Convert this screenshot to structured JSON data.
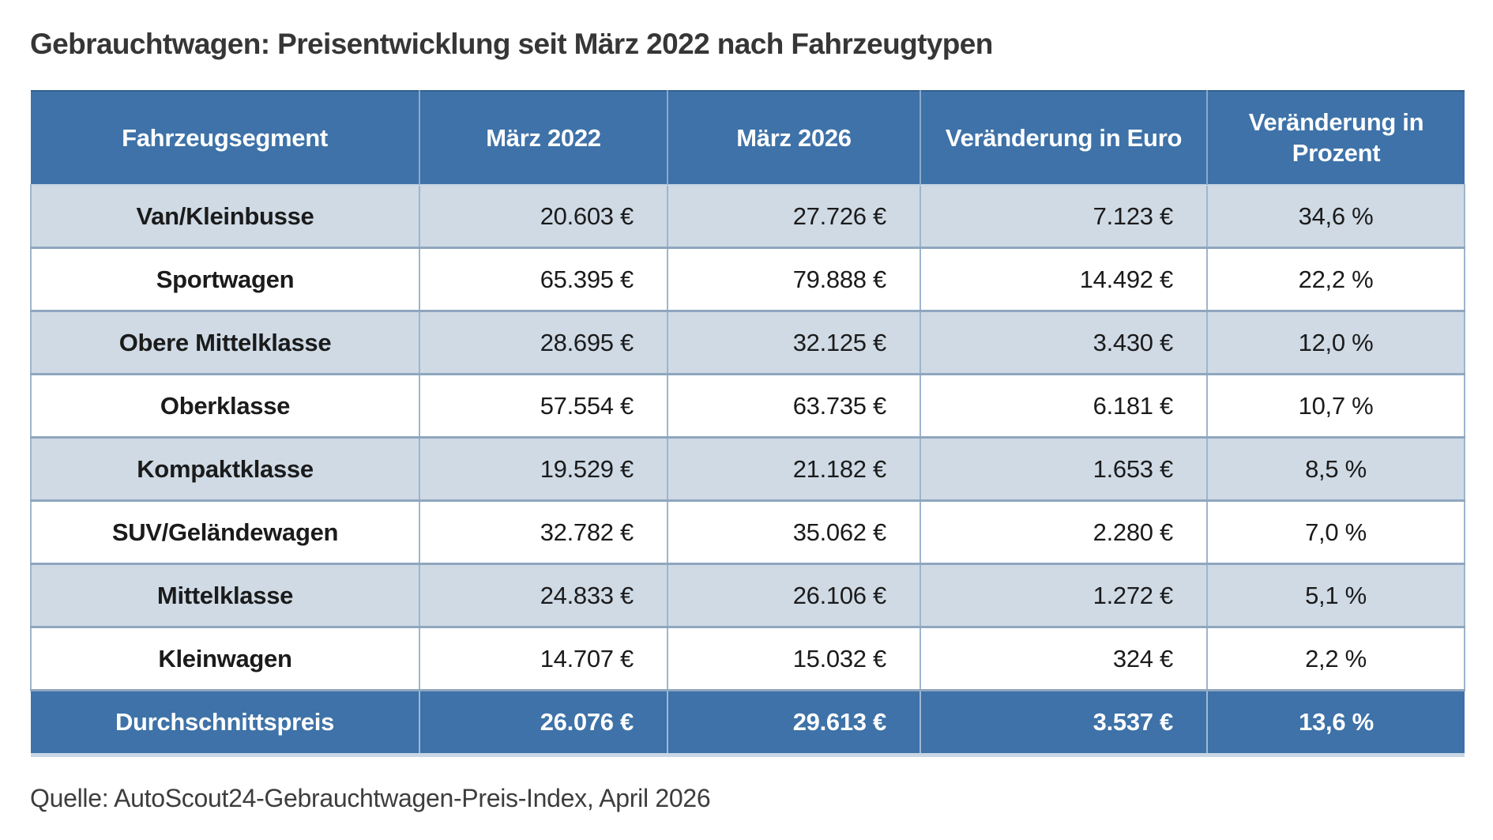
{
  "title": "Gebrauchtwagen: Preisentwicklung seit März 2022 nach Fahrzeugtypen",
  "source": "Quelle: AutoScout24-Gebrauchtwagen-Preis-Index, April 2026",
  "colors": {
    "header_bg": "#3E72A8",
    "alt_row_bg": "#CFDAE5",
    "row_bg": "#FFFFFF",
    "header_text": "#FFFFFF",
    "body_text": "#1B1B1B",
    "grid_line": "#9DB5CE"
  },
  "chart_data": {
    "type": "table",
    "title": "Gebrauchtwagen: Preisentwicklung seit März 2022 nach Fahrzeugtypen",
    "columns": [
      "Fahrzeugsegment",
      "März 2022",
      "März 2026",
      "Veränderung in Euro",
      "Veränderung in Prozent"
    ],
    "rows": [
      [
        "Van/Kleinbusse",
        "20.603 €",
        "27.726 €",
        "7.123 €",
        "34,6 %"
      ],
      [
        "Sportwagen",
        "65.395 €",
        "79.888 €",
        "14.492 €",
        "22,2 %"
      ],
      [
        "Obere Mittelklasse",
        "28.695 €",
        "32.125 €",
        "3.430 €",
        "12,0 %"
      ],
      [
        "Oberklasse",
        "57.554 €",
        "63.735 €",
        "6.181 €",
        "10,7 %"
      ],
      [
        "Kompaktklasse",
        "19.529 €",
        "21.182 €",
        "1.653 €",
        "8,5 %"
      ],
      [
        "SUV/Geländewagen",
        "32.782 €",
        "35.062 €",
        "2.280 €",
        "7,0 %"
      ],
      [
        "Mittelklasse",
        "24.833 €",
        "26.106 €",
        "1.272 €",
        "5,1 %"
      ],
      [
        "Kleinwagen",
        "14.707 €",
        "15.032 €",
        "324 €",
        "2,2 %"
      ]
    ],
    "summary_row": [
      "Durchschnittspreis",
      "26.076 €",
      "29.613 €",
      "3.537 €",
      "13,6 %"
    ],
    "source": "Quelle: AutoScout24-Gebrauchtwagen-Preis-Index, April 2026"
  }
}
